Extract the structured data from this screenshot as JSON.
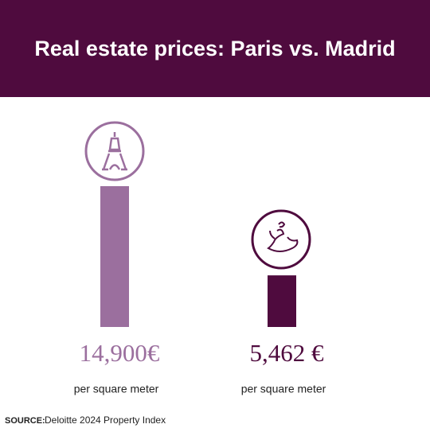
{
  "chart_data": {
    "type": "bar",
    "title": "Real estate prices: Paris vs. Madrid",
    "categories": [
      null,
      null
    ],
    "values": [
      14900,
      5462
    ],
    "value_labels": [
      "14,900€",
      "5,462 €"
    ],
    "unit_labels": [
      "per square meter",
      "per square meter"
    ],
    "colors": [
      "#9b6f9e",
      "#4f0b3e"
    ],
    "source_label": "SOURCE:",
    "source": "Deloitte 2024 Property Index"
  }
}
